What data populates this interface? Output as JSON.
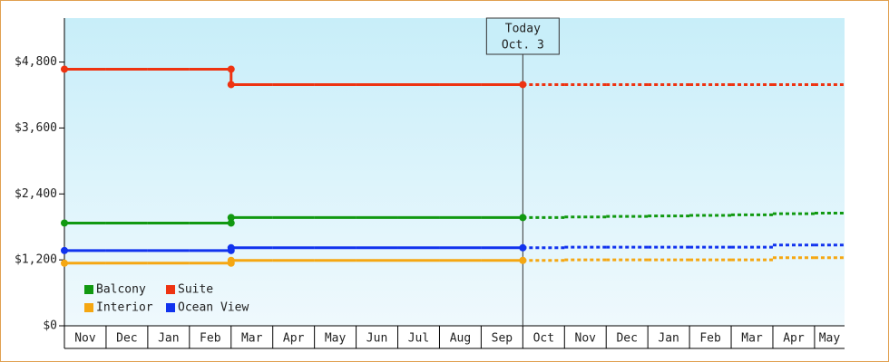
{
  "chart_data": {
    "type": "step",
    "annotation": [
      "Today",
      "Oct. 3"
    ],
    "categories": [
      "Nov",
      "Dec",
      "Jan",
      "Feb",
      "Mar",
      "Apr",
      "May",
      "Jun",
      "Jul",
      "Aug",
      "Sep",
      "Oct",
      "Nov",
      "Dec",
      "Jan",
      "Feb",
      "Mar",
      "Apr",
      "May"
    ],
    "series": [
      {
        "name": "Balcony",
        "color": "#119911",
        "values": [
          1870,
          1870,
          1870,
          1870,
          1970,
          1970,
          1970,
          1970,
          1970,
          1970,
          1970,
          null,
          null,
          null,
          null,
          null,
          null,
          null,
          null
        ],
        "forecast": [
          null,
          null,
          null,
          null,
          null,
          null,
          null,
          null,
          null,
          null,
          null,
          1970,
          1980,
          1990,
          2000,
          2010,
          2020,
          2040,
          2050
        ]
      },
      {
        "name": "Suite",
        "color": "#ee3311",
        "values": [
          4670,
          4670,
          4670,
          4670,
          4390,
          4390,
          4390,
          4390,
          4390,
          4390,
          4390,
          null,
          null,
          null,
          null,
          null,
          null,
          null,
          null
        ],
        "forecast": [
          null,
          null,
          null,
          null,
          null,
          null,
          null,
          null,
          null,
          null,
          null,
          4390,
          4390,
          4390,
          4390,
          4390,
          4390,
          4390,
          4390
        ]
      },
      {
        "name": "Interior",
        "color": "#f5a712",
        "values": [
          1140,
          1140,
          1140,
          1140,
          1190,
          1190,
          1190,
          1190,
          1190,
          1190,
          1190,
          null,
          null,
          null,
          null,
          null,
          null,
          null,
          null
        ],
        "forecast": [
          null,
          null,
          null,
          null,
          null,
          null,
          null,
          null,
          null,
          null,
          null,
          1190,
          1200,
          1200,
          1200,
          1200,
          1200,
          1240,
          1240
        ]
      },
      {
        "name": "Ocean View",
        "color": "#1133ee",
        "values": [
          1370,
          1370,
          1370,
          1370,
          1420,
          1420,
          1420,
          1420,
          1420,
          1420,
          1420,
          null,
          null,
          null,
          null,
          null,
          null,
          null,
          null
        ],
        "forecast": [
          null,
          null,
          null,
          null,
          null,
          null,
          null,
          null,
          null,
          null,
          null,
          1420,
          1430,
          1430,
          1430,
          1430,
          1430,
          1470,
          1470
        ]
      }
    ],
    "ylim": [
      0,
      5600
    ],
    "yticks": [
      {
        "value": 0,
        "label": "$0"
      },
      {
        "value": 1200,
        "label": "$1,200"
      },
      {
        "value": 2400,
        "label": "$2,400"
      },
      {
        "value": 3600,
        "label": "$3,600"
      },
      {
        "value": 4800,
        "label": "$4,800"
      }
    ]
  }
}
